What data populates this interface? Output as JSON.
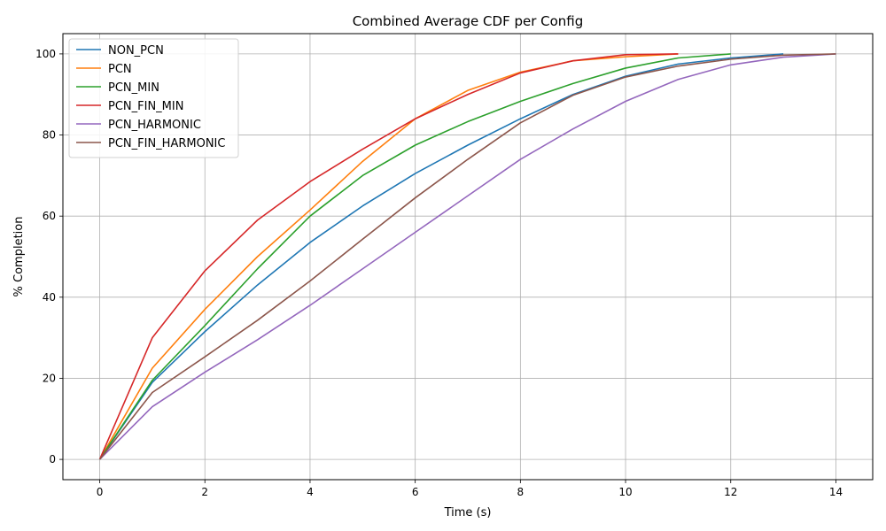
{
  "chart_data": {
    "type": "line",
    "title": "Combined Average CDF per Config",
    "xlabel": "Time (s)",
    "ylabel": "% Completion",
    "xlim": [
      -0.7,
      14.7
    ],
    "ylim": [
      -5,
      105
    ],
    "xticks": [
      0,
      2,
      4,
      6,
      8,
      10,
      12,
      14
    ],
    "yticks": [
      0,
      20,
      40,
      60,
      80,
      100
    ],
    "grid": true,
    "legend_position": "top-left",
    "series": [
      {
        "name": "NON_PCN",
        "color": "#1f77b4",
        "x": [
          0,
          1,
          2,
          3,
          4,
          5,
          6,
          7,
          8,
          9,
          10,
          11,
          12,
          13
        ],
        "y": [
          0,
          19,
          31.5,
          43,
          53.5,
          62.5,
          70.5,
          77.5,
          84,
          90,
          94.5,
          97.5,
          99,
          100
        ]
      },
      {
        "name": "PCN",
        "color": "#ff7f0e",
        "x": [
          0,
          1,
          2,
          3,
          4,
          5,
          6,
          7,
          8,
          9,
          10,
          11
        ],
        "y": [
          0,
          22.5,
          37,
          50,
          61.5,
          73.5,
          84,
          91,
          95.5,
          98.3,
          99.3,
          100
        ]
      },
      {
        "name": "PCN_MIN",
        "color": "#2ca02c",
        "x": [
          0,
          1,
          2,
          3,
          4,
          5,
          6,
          7,
          8,
          9,
          10,
          11,
          12
        ],
        "y": [
          0,
          19.5,
          33,
          47,
          60,
          70,
          77.5,
          83.3,
          88.3,
          92.7,
          96.5,
          99,
          100
        ]
      },
      {
        "name": "PCN_FIN_MIN",
        "color": "#d62728",
        "x": [
          0,
          1,
          2,
          3,
          4,
          5,
          6,
          7,
          8,
          9,
          10,
          11
        ],
        "y": [
          0,
          30,
          46.5,
          59,
          68.5,
          76.5,
          84,
          90,
          95.3,
          98.3,
          99.8,
          100
        ]
      },
      {
        "name": "PCN_HARMONIC",
        "color": "#9467bd",
        "x": [
          0,
          1,
          2,
          3,
          4,
          5,
          6,
          7,
          8,
          9,
          10,
          11,
          12,
          13,
          14
        ],
        "y": [
          0,
          13,
          21.5,
          29.5,
          38,
          47,
          56,
          65,
          74,
          81.5,
          88.3,
          93.7,
          97.3,
          99.2,
          100
        ]
      },
      {
        "name": "PCN_FIN_HARMONIC",
        "color": "#8c564b",
        "x": [
          0,
          1,
          2,
          3,
          4,
          5,
          6,
          7,
          8,
          9,
          10,
          11,
          12,
          13,
          14
        ],
        "y": [
          0,
          16.5,
          25.3,
          34.3,
          44,
          54.3,
          64.5,
          74,
          83,
          89.8,
          94.3,
          97,
          98.7,
          99.7,
          100
        ]
      }
    ]
  }
}
